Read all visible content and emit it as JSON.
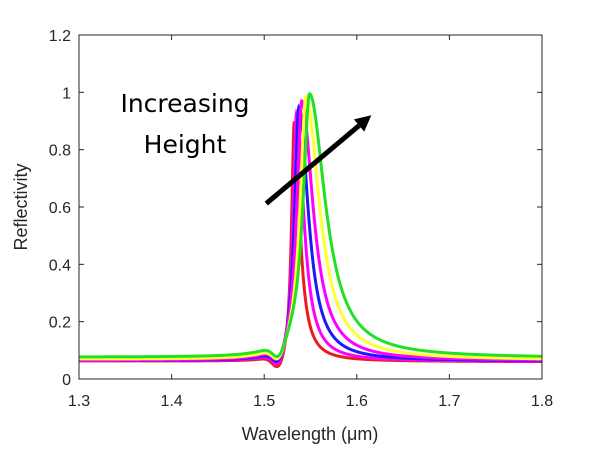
{
  "chart_data": {
    "type": "line",
    "title": "",
    "xlabel": "Wavelength (μm)",
    "ylabel": "Reflectivity",
    "xlim": [
      1.3,
      1.8
    ],
    "ylim": [
      0,
      1.2
    ],
    "x_ticks": [
      "1.3",
      "1.4",
      "1.5",
      "1.6",
      "1.7",
      "1.8"
    ],
    "y_ticks": [
      "0",
      "0.2",
      "0.4",
      "0.6",
      "0.8",
      "1",
      "1.2"
    ],
    "grid": false,
    "legend": "none",
    "annotation": {
      "lines": [
        "Increasing",
        "Height"
      ],
      "arrow_from": [
        1.54,
        0.64
      ],
      "arrow_to": [
        1.62,
        0.92
      ],
      "arrow_color": "#000000"
    },
    "series": [
      {
        "color": "#e81e1e",
        "peak_x": 1.5325,
        "peak_y": 0.9,
        "baseline": 0.062,
        "width": 0.0035,
        "tail": 0.006
      },
      {
        "color": "#ff00ff",
        "peak_x": 1.535,
        "peak_y": 0.93,
        "baseline": 0.063,
        "width": 0.0045,
        "tail": 0.008
      },
      {
        "color": "#1a1aff",
        "peak_x": 1.5375,
        "peak_y": 0.95,
        "baseline": 0.064,
        "width": 0.0055,
        "tail": 0.011
      },
      {
        "color": "#ff00ff",
        "peak_x": 1.5405,
        "peak_y": 0.97,
        "baseline": 0.065,
        "width": 0.0065,
        "tail": 0.014
      },
      {
        "color": "#ffff33",
        "peak_x": 1.545,
        "peak_y": 0.985,
        "baseline": 0.068,
        "width": 0.0075,
        "tail": 0.017
      },
      {
        "color": "#22e022",
        "peak_x": 1.549,
        "peak_y": 0.995,
        "baseline": 0.075,
        "width": 0.0085,
        "tail": 0.02
      }
    ]
  }
}
